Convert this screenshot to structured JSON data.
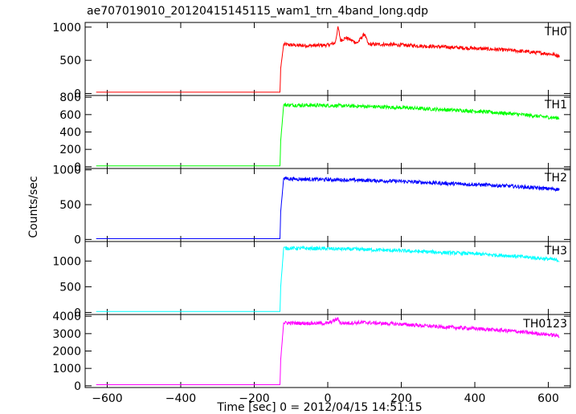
{
  "chart_data": {
    "type": "line",
    "title": "ae707019010_20120415145115_wam1_trn_4band_long.qdp",
    "xlabel": "Time [sec] 0 = 2012/04/15 14:51:15",
    "ylabel": "Counts/sec",
    "xlim": [
      -660,
      660
    ],
    "x_ticks": [
      -600,
      -400,
      -200,
      0,
      200,
      400,
      600
    ],
    "x_tick_labels": [
      "−600",
      "−400",
      "−200",
      "0",
      "200",
      "400",
      "600"
    ],
    "panels": [
      {
        "name": "TH0",
        "color": "#ff0000",
        "ylim": [
          -30,
          1070
        ],
        "y_ticks": [
          0,
          500,
          1000
        ],
        "y_tick_labels": [
          "0",
          "500",
          "1000"
        ],
        "x": [
          -630,
          -130,
          -128,
          -120,
          -100,
          -50,
          0,
          20,
          28,
          35,
          50,
          80,
          100,
          110,
          150,
          200,
          300,
          400,
          500,
          600,
          630
        ],
        "y": [
          20,
          20,
          380,
          740,
          730,
          720,
          730,
          760,
          1000,
          800,
          840,
          760,
          900,
          740,
          740,
          730,
          705,
          680,
          650,
          600,
          570
        ]
      },
      {
        "name": "TH1",
        "color": "#00ff00",
        "ylim": [
          -20,
          820
        ],
        "y_ticks": [
          0,
          200,
          400,
          600,
          800
        ],
        "y_tick_labels": [
          "0",
          "200",
          "400",
          "600",
          "800"
        ],
        "x": [
          -630,
          -130,
          -128,
          -120,
          -100,
          0,
          100,
          200,
          300,
          400,
          500,
          600,
          630
        ],
        "y": [
          10,
          10,
          300,
          710,
          710,
          705,
          695,
          680,
          660,
          640,
          610,
          570,
          560
        ]
      },
      {
        "name": "TH2",
        "color": "#0000ff",
        "ylim": [
          -30,
          1020
        ],
        "y_ticks": [
          0,
          500,
          1000
        ],
        "y_tick_labels": [
          "0",
          "500",
          "1000"
        ],
        "x": [
          -630,
          -130,
          -128,
          -120,
          -100,
          0,
          100,
          200,
          300,
          400,
          500,
          600,
          630
        ],
        "y": [
          10,
          10,
          400,
          880,
          870,
          860,
          850,
          835,
          810,
          790,
          765,
          730,
          720
        ]
      },
      {
        "name": "TH3",
        "color": "#00ffff",
        "ylim": [
          -40,
          1380
        ],
        "y_ticks": [
          0,
          500,
          1000
        ],
        "y_tick_labels": [
          "0",
          "500",
          "1000"
        ],
        "x": [
          -630,
          -130,
          -128,
          -120,
          -100,
          0,
          100,
          200,
          300,
          400,
          500,
          600,
          630
        ],
        "y": [
          20,
          20,
          500,
          1250,
          1250,
          1240,
          1225,
          1200,
          1170,
          1140,
          1100,
          1040,
          1010
        ]
      },
      {
        "name": "TH0123",
        "color": "#ff00ff",
        "ylim": [
          -100,
          4100
        ],
        "y_ticks": [
          0,
          1000,
          2000,
          3000,
          4000
        ],
        "y_tick_labels": [
          "0",
          "1000",
          "2000",
          "3000",
          "4000"
        ],
        "x": [
          -630,
          -130,
          -128,
          -120,
          -100,
          0,
          28,
          35,
          100,
          200,
          300,
          400,
          500,
          600,
          630
        ],
        "y": [
          60,
          60,
          1500,
          3620,
          3610,
          3590,
          3850,
          3600,
          3640,
          3540,
          3400,
          3290,
          3150,
          2950,
          2870
        ]
      }
    ]
  }
}
